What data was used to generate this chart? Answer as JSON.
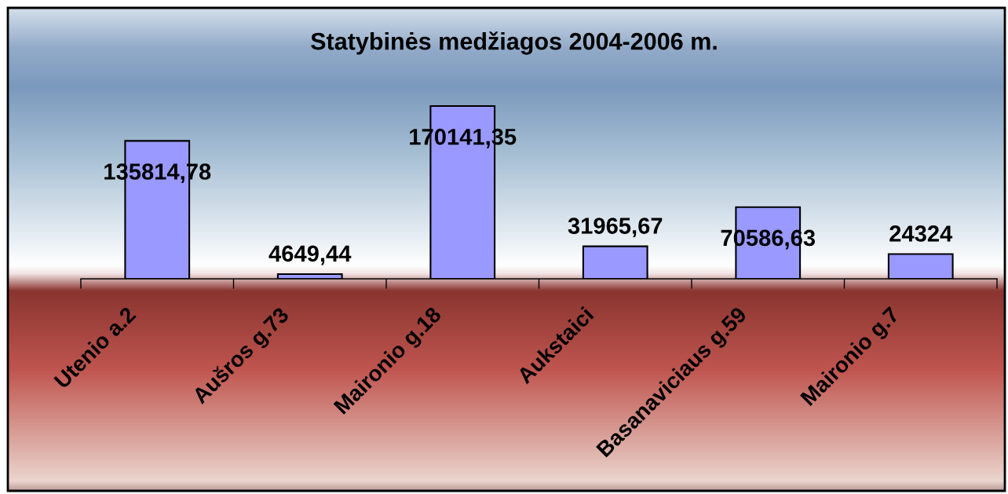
{
  "chart_data": {
    "type": "bar",
    "title": "Statybinės medžiagos 2004-2006 m.",
    "categories": [
      "Utenio a.2",
      "Aušros g.73",
      "Maironio g.18",
      "Aukstaici",
      "Basanaviciaus g.59",
      "Maironio g.7"
    ],
    "values": [
      135814.78,
      4649.44,
      170141.35,
      31965.67,
      70586.63,
      24324
    ],
    "value_labels": [
      "135814,78",
      "4649,44",
      "170141,35",
      "31965,67",
      "70586,63",
      "24324"
    ],
    "color": "#9999ff",
    "tick_labels": "x"
  }
}
